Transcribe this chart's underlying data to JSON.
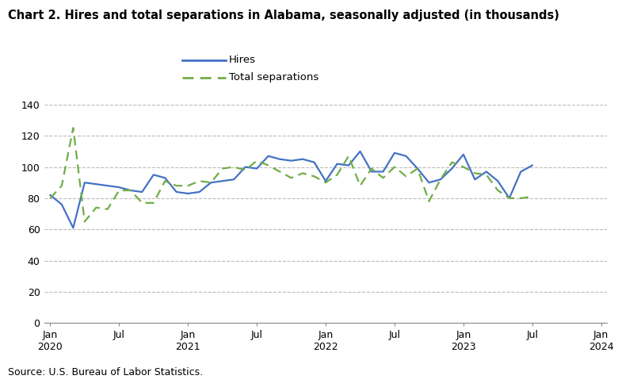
{
  "title": "Chart 2. Hires and total separations in Alabama, seasonally adjusted (in thousands)",
  "source": "Source: U.S. Bureau of Labor Statistics.",
  "hires": [
    82,
    76,
    61,
    90,
    89,
    88,
    87,
    85,
    84,
    95,
    93,
    84,
    83,
    84,
    90,
    91,
    92,
    100,
    99,
    107,
    105,
    104,
    105,
    103,
    91,
    102,
    101,
    110,
    97,
    97,
    109,
    107,
    99,
    90,
    92,
    99,
    108,
    92,
    97,
    91,
    80,
    97,
    101
  ],
  "separations": [
    80,
    88,
    125,
    65,
    74,
    73,
    85,
    85,
    77,
    77,
    91,
    88,
    88,
    91,
    90,
    99,
    100,
    98,
    104,
    101,
    97,
    93,
    96,
    94,
    90,
    95,
    107,
    88,
    99,
    93,
    100,
    94,
    99,
    78,
    92,
    103,
    100,
    96,
    95,
    85,
    80,
    80,
    81
  ],
  "hires_color": "#4472C4",
  "separations_color": "#70AD47",
  "ylim": [
    0,
    140
  ],
  "yticks": [
    0,
    20,
    40,
    60,
    80,
    100,
    120,
    140
  ],
  "xtick_positions": [
    0,
    6,
    12,
    18,
    24,
    30,
    36,
    42,
    48
  ],
  "xtick_labels_top": [
    "Jan",
    "Jul",
    "Jan",
    "Jul",
    "Jan",
    "Jul",
    "Jan",
    "Jul",
    "Jan"
  ],
  "xtick_labels_bot": [
    "2020",
    "",
    "2021",
    "",
    "2022",
    "",
    "2023",
    "",
    "2024"
  ]
}
